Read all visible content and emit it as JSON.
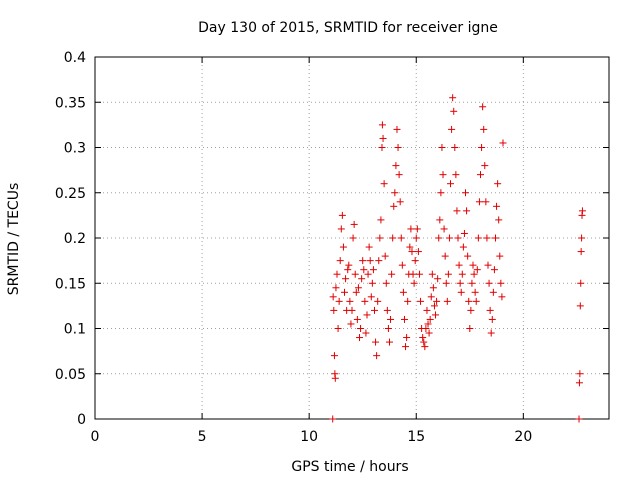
{
  "chart_data": {
    "type": "scatter",
    "title": "Day 130 of 2015, SRMTID for receiver igne",
    "xlabel": "GPS time / hours",
    "ylabel": "SRMTID / TECUs",
    "xlim": [
      0,
      24
    ],
    "ylim": [
      0,
      0.4
    ],
    "xticks": [
      0,
      5,
      10,
      15,
      20
    ],
    "xtick_labels": [
      "0",
      "5",
      "10",
      "15",
      "20"
    ],
    "yticks": [
      0,
      0.05,
      0.1,
      0.15,
      0.2,
      0.25,
      0.3,
      0.35,
      0.4
    ],
    "ytick_labels": [
      "0",
      "0.05",
      "0.1",
      "0.15",
      "0.2",
      "0.25",
      "0.3",
      "0.35",
      "0.4"
    ],
    "grid": true,
    "marker": "+",
    "color": "#e00000",
    "points": [
      [
        11.1,
        0.0
      ],
      [
        11.12,
        0.135
      ],
      [
        11.15,
        0.12
      ],
      [
        11.18,
        0.07
      ],
      [
        11.2,
        0.05
      ],
      [
        11.22,
        0.045
      ],
      [
        11.25,
        0.145
      ],
      [
        11.3,
        0.16
      ],
      [
        11.35,
        0.1
      ],
      [
        11.4,
        0.13
      ],
      [
        11.45,
        0.175
      ],
      [
        11.5,
        0.21
      ],
      [
        11.55,
        0.225
      ],
      [
        11.6,
        0.19
      ],
      [
        11.65,
        0.14
      ],
      [
        11.7,
        0.155
      ],
      [
        11.75,
        0.12
      ],
      [
        11.8,
        0.165
      ],
      [
        11.85,
        0.17
      ],
      [
        11.9,
        0.13
      ],
      [
        11.95,
        0.105
      ],
      [
        12.0,
        0.12
      ],
      [
        12.05,
        0.2
      ],
      [
        12.1,
        0.215
      ],
      [
        12.15,
        0.16
      ],
      [
        12.2,
        0.14
      ],
      [
        12.25,
        0.11
      ],
      [
        12.3,
        0.145
      ],
      [
        12.35,
        0.09
      ],
      [
        12.4,
        0.1
      ],
      [
        12.45,
        0.155
      ],
      [
        12.5,
        0.175
      ],
      [
        12.55,
        0.165
      ],
      [
        12.6,
        0.13
      ],
      [
        12.65,
        0.095
      ],
      [
        12.7,
        0.115
      ],
      [
        12.75,
        0.16
      ],
      [
        12.8,
        0.19
      ],
      [
        12.85,
        0.175
      ],
      [
        12.9,
        0.135
      ],
      [
        12.95,
        0.15
      ],
      [
        13.0,
        0.165
      ],
      [
        13.05,
        0.12
      ],
      [
        13.1,
        0.085
      ],
      [
        13.15,
        0.07
      ],
      [
        13.2,
        0.13
      ],
      [
        13.25,
        0.175
      ],
      [
        13.3,
        0.2
      ],
      [
        13.35,
        0.22
      ],
      [
        13.4,
        0.3
      ],
      [
        13.42,
        0.325
      ],
      [
        13.45,
        0.31
      ],
      [
        13.5,
        0.26
      ],
      [
        13.55,
        0.18
      ],
      [
        13.6,
        0.15
      ],
      [
        13.65,
        0.12
      ],
      [
        13.7,
        0.1
      ],
      [
        13.75,
        0.085
      ],
      [
        13.8,
        0.11
      ],
      [
        13.85,
        0.16
      ],
      [
        13.9,
        0.2
      ],
      [
        13.95,
        0.235
      ],
      [
        14.0,
        0.25
      ],
      [
        14.05,
        0.28
      ],
      [
        14.1,
        0.32
      ],
      [
        14.15,
        0.3
      ],
      [
        14.2,
        0.27
      ],
      [
        14.25,
        0.24
      ],
      [
        14.3,
        0.2
      ],
      [
        14.35,
        0.17
      ],
      [
        14.4,
        0.14
      ],
      [
        14.45,
        0.11
      ],
      [
        14.5,
        0.08
      ],
      [
        14.55,
        0.09
      ],
      [
        14.6,
        0.13
      ],
      [
        14.65,
        0.16
      ],
      [
        14.7,
        0.19
      ],
      [
        14.75,
        0.21
      ],
      [
        14.8,
        0.185
      ],
      [
        14.85,
        0.16
      ],
      [
        14.9,
        0.15
      ],
      [
        14.95,
        0.175
      ],
      [
        15.0,
        0.2
      ],
      [
        15.05,
        0.21
      ],
      [
        15.1,
        0.185
      ],
      [
        15.15,
        0.16
      ],
      [
        15.2,
        0.13
      ],
      [
        15.25,
        0.1
      ],
      [
        15.3,
        0.09
      ],
      [
        15.35,
        0.085
      ],
      [
        15.4,
        0.08
      ],
      [
        15.45,
        0.1
      ],
      [
        15.5,
        0.12
      ],
      [
        15.55,
        0.105
      ],
      [
        15.6,
        0.095
      ],
      [
        15.65,
        0.11
      ],
      [
        15.7,
        0.135
      ],
      [
        15.75,
        0.16
      ],
      [
        15.8,
        0.145
      ],
      [
        15.85,
        0.125
      ],
      [
        15.9,
        0.115
      ],
      [
        15.95,
        0.13
      ],
      [
        16.0,
        0.155
      ],
      [
        16.05,
        0.2
      ],
      [
        16.1,
        0.22
      ],
      [
        16.15,
        0.25
      ],
      [
        16.2,
        0.3
      ],
      [
        16.25,
        0.27
      ],
      [
        16.3,
        0.21
      ],
      [
        16.35,
        0.18
      ],
      [
        16.4,
        0.15
      ],
      [
        16.45,
        0.13
      ],
      [
        16.5,
        0.16
      ],
      [
        16.55,
        0.2
      ],
      [
        16.6,
        0.26
      ],
      [
        16.65,
        0.32
      ],
      [
        16.7,
        0.355
      ],
      [
        16.75,
        0.34
      ],
      [
        16.8,
        0.3
      ],
      [
        16.85,
        0.27
      ],
      [
        16.9,
        0.23
      ],
      [
        16.95,
        0.2
      ],
      [
        17.0,
        0.17
      ],
      [
        17.05,
        0.15
      ],
      [
        17.1,
        0.14
      ],
      [
        17.15,
        0.16
      ],
      [
        17.2,
        0.19
      ],
      [
        17.25,
        0.205
      ],
      [
        17.3,
        0.25
      ],
      [
        17.35,
        0.23
      ],
      [
        17.4,
        0.18
      ],
      [
        17.45,
        0.13
      ],
      [
        17.5,
        0.1
      ],
      [
        17.55,
        0.12
      ],
      [
        17.6,
        0.15
      ],
      [
        17.65,
        0.17
      ],
      [
        17.7,
        0.16
      ],
      [
        17.75,
        0.14
      ],
      [
        17.8,
        0.13
      ],
      [
        17.85,
        0.165
      ],
      [
        17.9,
        0.2
      ],
      [
        17.95,
        0.24
      ],
      [
        18.0,
        0.27
      ],
      [
        18.05,
        0.3
      ],
      [
        18.1,
        0.345
      ],
      [
        18.15,
        0.32
      ],
      [
        18.2,
        0.28
      ],
      [
        18.25,
        0.24
      ],
      [
        18.3,
        0.2
      ],
      [
        18.35,
        0.17
      ],
      [
        18.4,
        0.15
      ],
      [
        18.45,
        0.12
      ],
      [
        18.5,
        0.095
      ],
      [
        18.55,
        0.11
      ],
      [
        18.6,
        0.14
      ],
      [
        18.65,
        0.165
      ],
      [
        18.7,
        0.2
      ],
      [
        18.75,
        0.235
      ],
      [
        18.8,
        0.26
      ],
      [
        18.85,
        0.22
      ],
      [
        18.9,
        0.18
      ],
      [
        18.95,
        0.15
      ],
      [
        19.0,
        0.135
      ],
      [
        19.05,
        0.305
      ],
      [
        22.6,
        0.0
      ],
      [
        22.62,
        0.04
      ],
      [
        22.64,
        0.05
      ],
      [
        22.66,
        0.125
      ],
      [
        22.68,
        0.15
      ],
      [
        22.7,
        0.185
      ],
      [
        22.72,
        0.2
      ],
      [
        22.74,
        0.225
      ],
      [
        22.76,
        0.23
      ]
    ]
  }
}
